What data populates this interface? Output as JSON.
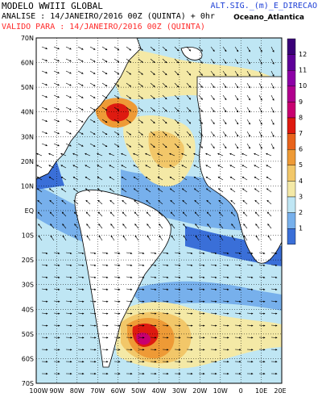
{
  "header": {
    "model_title": "MODELO WWIII GLOBAL",
    "analysis_line": "ANALISE : 14/JANEIRO/2016 00Z  (QUINTA) + 0hr",
    "valid_line": "VALIDO PARA : 14/JANEIRO/2016 00Z  (QUINTA)",
    "variable": "ALT.SIG._(m)_E_DIRECAO",
    "region": "Oceano_Atlantica"
  },
  "map": {
    "lat_labels": [
      "70N",
      "60N",
      "50N",
      "40N",
      "30N",
      "20N",
      "10N",
      "EQ",
      "10S",
      "20S",
      "30S",
      "40S",
      "50S",
      "60S",
      "70S"
    ],
    "lon_labels": [
      "100W",
      "90W",
      "80W",
      "70W",
      "60W",
      "50W",
      "40W",
      "30W",
      "20W",
      "10W",
      "0",
      "10E",
      "20E"
    ],
    "ocean_color": "#f4f7ff",
    "land_color": "#ffffff"
  },
  "colorbar": {
    "levels": [
      "1",
      "2",
      "3",
      "4",
      "5",
      "6",
      "7",
      "8",
      "9",
      "10",
      "11",
      "12"
    ],
    "colors": [
      "#3a6fd8",
      "#77b0ec",
      "#bfe6f4",
      "#f4e9a6",
      "#f2c769",
      "#ee9a36",
      "#e8631c",
      "#de1a10",
      "#c80070",
      "#b0008e",
      "#8d00a6",
      "#5e0098",
      "#3a0078"
    ]
  }
}
